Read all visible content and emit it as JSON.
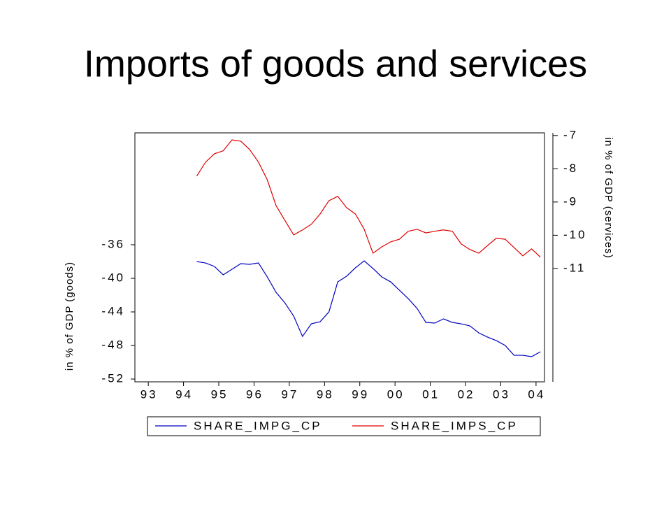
{
  "chart_data": {
    "type": "line",
    "title": "Imports of goods and services",
    "ylabel": "in % of GDP (goods)",
    "y2label": "in % of GDP (services)",
    "x": [
      1994.375,
      1994.625,
      1994.875,
      1995.125,
      1995.375,
      1995.625,
      1995.875,
      1996.125,
      1996.375,
      1996.625,
      1996.875,
      1997.125,
      1997.375,
      1997.625,
      1997.875,
      1998.125,
      1998.375,
      1998.625,
      1998.875,
      1999.125,
      1999.375,
      1999.625,
      1999.875,
      2000.125,
      2000.375,
      2000.625,
      2000.875,
      2001.125,
      2001.375,
      2001.625,
      2001.875,
      2002.125,
      2002.375,
      2002.625,
      2002.875,
      2003.125,
      2003.375,
      2003.625,
      2003.875,
      2004.125
    ],
    "series": [
      {
        "name": "SHARE_IMPG_CP",
        "color": "#0000c0",
        "axis": "y",
        "values": [
          -38.0,
          -38.17,
          -38.58,
          -39.58,
          -38.92,
          -38.25,
          -38.33,
          -38.17,
          -39.83,
          -41.67,
          -42.92,
          -44.5,
          -46.92,
          -45.42,
          -45.17,
          -44.0,
          -40.42,
          -39.75,
          -38.75,
          -37.92,
          -38.83,
          -39.83,
          -40.42,
          -41.42,
          -42.42,
          -43.58,
          -45.25,
          -45.33,
          -44.83,
          -45.25,
          -45.42,
          -45.67,
          -46.5,
          -47.0,
          -47.42,
          -48.0,
          -49.17,
          -49.17,
          -49.33,
          -48.75
        ]
      },
      {
        "name": "SHARE_IMPS_CP",
        "color": "#e00000",
        "axis": "y2",
        "values": [
          -8.22,
          -7.8,
          -7.55,
          -7.46,
          -7.13,
          -7.17,
          -7.42,
          -7.8,
          -8.33,
          -9.11,
          -9.55,
          -9.99,
          -9.84,
          -9.67,
          -9.36,
          -8.96,
          -8.83,
          -9.17,
          -9.36,
          -9.82,
          -10.54,
          -10.35,
          -10.2,
          -10.12,
          -9.88,
          -9.82,
          -9.93,
          -9.88,
          -9.84,
          -9.88,
          -10.26,
          -10.43,
          -10.54,
          -10.31,
          -10.09,
          -10.12,
          -10.37,
          -10.62,
          -10.41,
          -10.66
        ]
      }
    ],
    "xlim": [
      1992.62,
      2004.24
    ],
    "xticks": [
      {
        "value": 1993,
        "label": "93"
      },
      {
        "value": 1994,
        "label": "94"
      },
      {
        "value": 1995,
        "label": "95"
      },
      {
        "value": 1996,
        "label": "96"
      },
      {
        "value": 1997,
        "label": "97"
      },
      {
        "value": 1998,
        "label": "98"
      },
      {
        "value": 1999,
        "label": "99"
      },
      {
        "value": 2000,
        "label": "00"
      },
      {
        "value": 2001,
        "label": "01"
      },
      {
        "value": 2002,
        "label": "02"
      },
      {
        "value": 2003,
        "label": "03"
      },
      {
        "value": 2004,
        "label": "04"
      }
    ],
    "ylim": [
      -52.33,
      -22.67
    ],
    "yticks": [
      -52,
      -48,
      -44,
      -40,
      -36
    ],
    "y2lim": [
      -14.41,
      -6.92
    ],
    "y2ticks": [
      -11,
      -10,
      -9,
      -8,
      -7
    ],
    "legend": "bottom"
  }
}
